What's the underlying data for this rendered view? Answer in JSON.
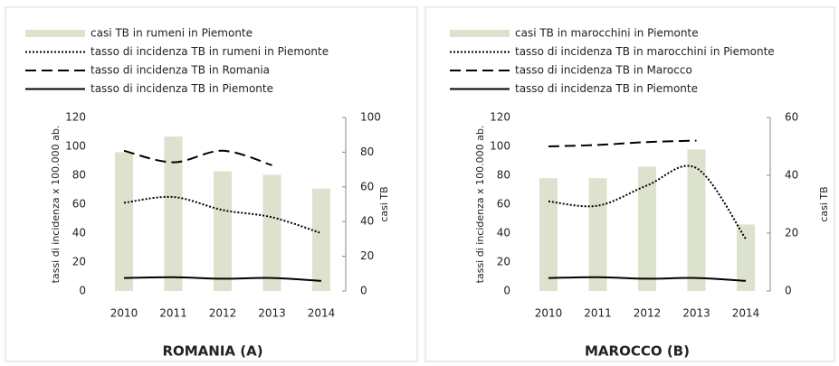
{
  "chart_data": [
    {
      "type": "bar",
      "title": "ROMANIA (A)",
      "ylabel": "tassi di incidenza x 100.000 ab.",
      "y2label": "casi TB",
      "categories": [
        "2010",
        "2011",
        "2012",
        "2013",
        "2014"
      ],
      "series": [
        {
          "name": "casi TB in rumeni in Piemonte",
          "type": "bar",
          "color": "#dde2cf",
          "axis": "y2",
          "values": [
            80,
            89,
            69,
            67,
            59
          ]
        },
        {
          "name": "tasso di incidenza TB in rumeni in Piemonte",
          "type": "line",
          "dash": "dotted",
          "color": "#000000",
          "values": [
            61,
            65,
            56,
            51,
            40
          ]
        },
        {
          "name": "tasso di incidenza TB in  Romania",
          "type": "line",
          "dash": "dashed",
          "color": "#000000",
          "values": [
            97,
            89,
            97,
            87,
            null
          ]
        },
        {
          "name": "tasso di incidenza TB in Piemonte",
          "type": "line",
          "dash": "solid",
          "color": "#000000",
          "values": [
            9,
            9.5,
            8.5,
            9,
            7
          ]
        }
      ],
      "ylim": [
        0,
        120
      ],
      "yticks": [
        0,
        20,
        40,
        60,
        80,
        100,
        120
      ],
      "y2lim": [
        0,
        100
      ],
      "y2ticks": [
        0,
        20,
        40,
        60,
        80,
        100
      ]
    },
    {
      "type": "bar",
      "title": "MAROCCO (B)",
      "ylabel": "tassi di incidenza x 100.000 ab.",
      "y2label": "casi TB",
      "categories": [
        "2010",
        "2011",
        "2012",
        "2013",
        "2014"
      ],
      "series": [
        {
          "name": "casi TB in marocchini in Piemonte",
          "type": "bar",
          "color": "#dde2cf",
          "axis": "y2",
          "values": [
            39,
            39,
            43,
            49,
            23
          ]
        },
        {
          "name": "tasso di incidenza TB in marocchini in Piemonte",
          "type": "line",
          "dash": "dotted",
          "color": "#000000",
          "values": [
            62,
            59,
            73,
            85,
            36
          ]
        },
        {
          "name": "tasso di incidenza TB in  Marocco",
          "type": "line",
          "dash": "dashed",
          "color": "#000000",
          "values": [
            100,
            101,
            103,
            104,
            null
          ]
        },
        {
          "name": "tasso di incidenza TB in Piemonte",
          "type": "line",
          "dash": "solid",
          "color": "#000000",
          "values": [
            9,
            9.5,
            8.5,
            9,
            7
          ]
        }
      ],
      "ylim": [
        0,
        120
      ],
      "yticks": [
        0,
        20,
        40,
        60,
        80,
        100,
        120
      ],
      "y2lim": [
        0,
        60
      ],
      "y2ticks": [
        0,
        20,
        40,
        60
      ]
    }
  ]
}
